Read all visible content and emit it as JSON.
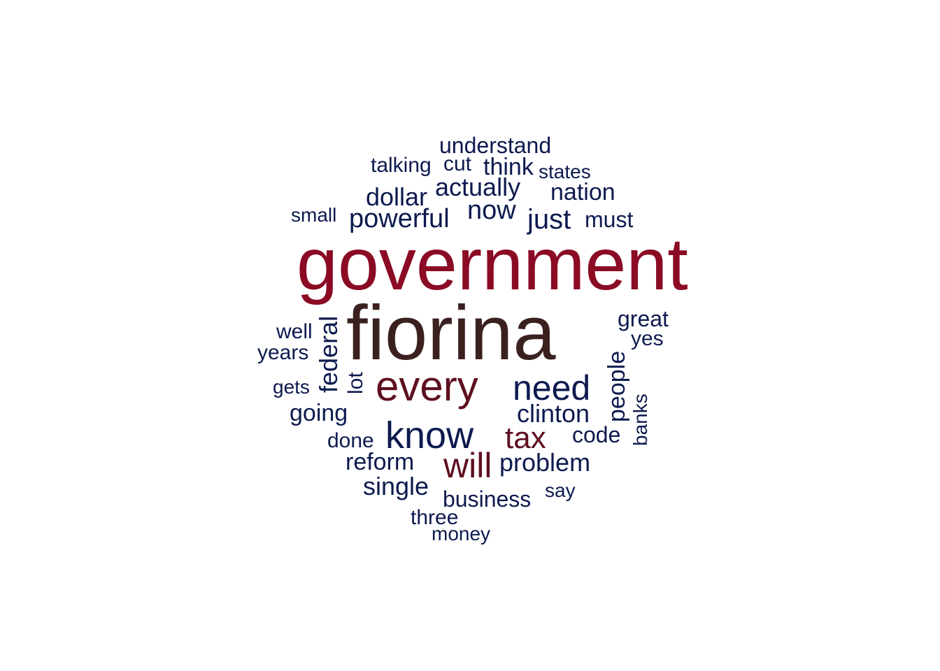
{
  "colors": {
    "crimson": "#8b0a24",
    "dark_brown": "#3a201f",
    "maroon": "#5e0f1f",
    "navy": "#0d1a4f"
  },
  "words": [
    {
      "text": "government",
      "color": "#8b0a24",
      "vertical": false
    },
    {
      "text": "fiorina",
      "color": "#3a201f",
      "vertical": false
    },
    {
      "text": "every",
      "color": "#5e0f1f",
      "vertical": false
    },
    {
      "text": "need",
      "color": "#0d1a4f",
      "vertical": false
    },
    {
      "text": "know",
      "color": "#0d1a4f",
      "vertical": false
    },
    {
      "text": "tax",
      "color": "#5e0f1f",
      "vertical": false
    },
    {
      "text": "will",
      "color": "#5e0f1f",
      "vertical": false
    },
    {
      "text": "understand",
      "color": "#0d1a4f",
      "vertical": false
    },
    {
      "text": "talking",
      "color": "#0d1a4f",
      "vertical": false
    },
    {
      "text": "cut",
      "color": "#0d1a4f",
      "vertical": false
    },
    {
      "text": "think",
      "color": "#0d1a4f",
      "vertical": false
    },
    {
      "text": "states",
      "color": "#0d1a4f",
      "vertical": false
    },
    {
      "text": "actually",
      "color": "#0d1a4f",
      "vertical": false
    },
    {
      "text": "nation",
      "color": "#0d1a4f",
      "vertical": false
    },
    {
      "text": "dollar",
      "color": "#0d1a4f",
      "vertical": false
    },
    {
      "text": "now",
      "color": "#0d1a4f",
      "vertical": false
    },
    {
      "text": "small",
      "color": "#0d1a4f",
      "vertical": false
    },
    {
      "text": "powerful",
      "color": "#0d1a4f",
      "vertical": false
    },
    {
      "text": "just",
      "color": "#0d1a4f",
      "vertical": false
    },
    {
      "text": "must",
      "color": "#0d1a4f",
      "vertical": false
    },
    {
      "text": "great",
      "color": "#0d1a4f",
      "vertical": false
    },
    {
      "text": "yes",
      "color": "#0d1a4f",
      "vertical": false
    },
    {
      "text": "well",
      "color": "#0d1a4f",
      "vertical": false
    },
    {
      "text": "years",
      "color": "#0d1a4f",
      "vertical": false
    },
    {
      "text": "federal",
      "color": "#0d1a4f",
      "vertical": true
    },
    {
      "text": "lot",
      "color": "#0d1a4f",
      "vertical": true
    },
    {
      "text": "people",
      "color": "#0d1a4f",
      "vertical": true
    },
    {
      "text": "banks",
      "color": "#0d1a4f",
      "vertical": true
    },
    {
      "text": "gets",
      "color": "#0d1a4f",
      "vertical": false
    },
    {
      "text": "going",
      "color": "#0d1a4f",
      "vertical": false
    },
    {
      "text": "clinton",
      "color": "#0d1a4f",
      "vertical": false
    },
    {
      "text": "done",
      "color": "#0d1a4f",
      "vertical": false
    },
    {
      "text": "code",
      "color": "#0d1a4f",
      "vertical": false
    },
    {
      "text": "reform",
      "color": "#0d1a4f",
      "vertical": false
    },
    {
      "text": "problem",
      "color": "#0d1a4f",
      "vertical": false
    },
    {
      "text": "single",
      "color": "#0d1a4f",
      "vertical": false
    },
    {
      "text": "business",
      "color": "#0d1a4f",
      "vertical": false
    },
    {
      "text": "say",
      "color": "#0d1a4f",
      "vertical": false
    },
    {
      "text": "three",
      "color": "#0d1a4f",
      "vertical": false
    },
    {
      "text": "money",
      "color": "#0d1a4f",
      "vertical": false
    }
  ]
}
